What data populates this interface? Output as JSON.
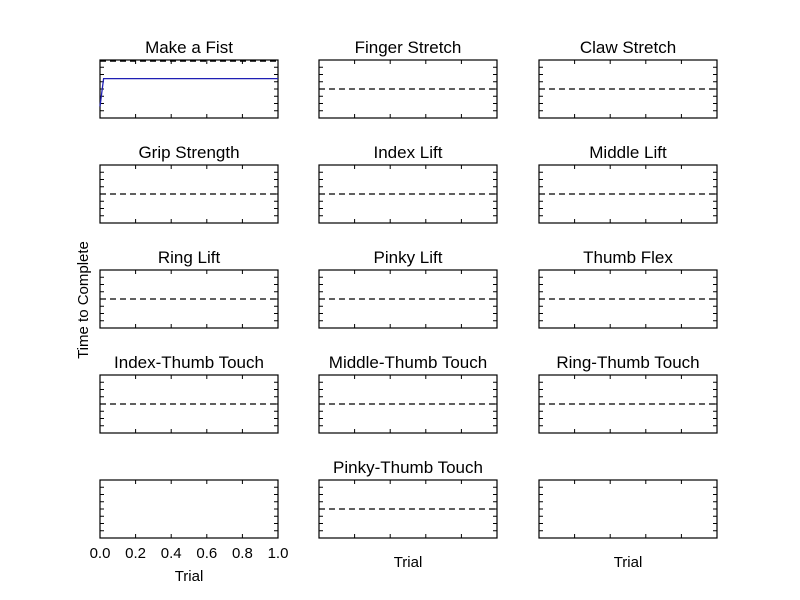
{
  "figure": {
    "ylabel": "Time to Complete",
    "colors": {
      "series": "#1f1fb4",
      "reference": "#000000",
      "axes": "#000000"
    }
  },
  "chart_data": [
    {
      "type": "line",
      "title": "Make a Fist",
      "xlabel": "",
      "ylabel": "",
      "xlim": [
        0,
        1
      ],
      "ylim": [
        0,
        1
      ],
      "series": [
        {
          "x": [
            0.0,
            0.02,
            1.0
          ],
          "y": [
            0.2,
            0.68,
            0.68
          ]
        }
      ],
      "reference_y": 0.98
    },
    {
      "type": "line",
      "title": "Finger Stretch",
      "xlabel": "",
      "ylabel": "",
      "xlim": [
        0,
        1
      ],
      "ylim": [
        0,
        1
      ],
      "series": [],
      "reference_y": 0.5
    },
    {
      "type": "line",
      "title": "Claw Stretch",
      "xlabel": "",
      "ylabel": "",
      "xlim": [
        0,
        1
      ],
      "ylim": [
        0,
        1
      ],
      "series": [],
      "reference_y": 0.5
    },
    {
      "type": "line",
      "title": "Grip Strength",
      "xlabel": "",
      "ylabel": "",
      "xlim": [
        0,
        1
      ],
      "ylim": [
        0,
        1
      ],
      "series": [],
      "reference_y": 0.5
    },
    {
      "type": "line",
      "title": "Index Lift",
      "xlabel": "",
      "ylabel": "",
      "xlim": [
        0,
        1
      ],
      "ylim": [
        0,
        1
      ],
      "series": [],
      "reference_y": 0.5
    },
    {
      "type": "line",
      "title": "Middle Lift",
      "xlabel": "",
      "ylabel": "",
      "xlim": [
        0,
        1
      ],
      "ylim": [
        0,
        1
      ],
      "series": [],
      "reference_y": 0.5
    },
    {
      "type": "line",
      "title": "Ring Lift",
      "xlabel": "",
      "ylabel": "",
      "xlim": [
        0,
        1
      ],
      "ylim": [
        0,
        1
      ],
      "series": [],
      "reference_y": 0.5
    },
    {
      "type": "line",
      "title": "Pinky Lift",
      "xlabel": "",
      "ylabel": "",
      "xlim": [
        0,
        1
      ],
      "ylim": [
        0,
        1
      ],
      "series": [],
      "reference_y": 0.5
    },
    {
      "type": "line",
      "title": "Thumb Flex",
      "xlabel": "",
      "ylabel": "",
      "xlim": [
        0,
        1
      ],
      "ylim": [
        0,
        1
      ],
      "series": [],
      "reference_y": 0.5
    },
    {
      "type": "line",
      "title": "Index-Thumb Touch",
      "xlabel": "",
      "ylabel": "",
      "xlim": [
        0,
        1
      ],
      "ylim": [
        0,
        1
      ],
      "series": [],
      "reference_y": 0.5
    },
    {
      "type": "line",
      "title": "Middle-Thumb Touch",
      "xlabel": "",
      "ylabel": "",
      "xlim": [
        0,
        1
      ],
      "ylim": [
        0,
        1
      ],
      "series": [],
      "reference_y": 0.5
    },
    {
      "type": "line",
      "title": "Ring-Thumb Touch",
      "xlabel": "",
      "ylabel": "",
      "xlim": [
        0,
        1
      ],
      "ylim": [
        0,
        1
      ],
      "series": [],
      "reference_y": 0.5
    },
    {
      "type": "line",
      "title": "",
      "xlabel": "Trial",
      "ylabel": "",
      "xlim": [
        0,
        1
      ],
      "ylim": [
        0,
        1
      ],
      "series": [],
      "reference_y": null,
      "xticks": [
        "0.0",
        "0.2",
        "0.4",
        "0.6",
        "0.8",
        "1.0"
      ]
    },
    {
      "type": "line",
      "title": "Pinky-Thumb Touch",
      "xlabel": "Trial",
      "ylabel": "",
      "xlim": [
        0,
        1
      ],
      "ylim": [
        0,
        1
      ],
      "series": [],
      "reference_y": 0.5
    },
    {
      "type": "line",
      "title": "",
      "xlabel": "Trial",
      "ylabel": "",
      "xlim": [
        0,
        1
      ],
      "ylim": [
        0,
        1
      ],
      "series": [],
      "reference_y": null
    }
  ]
}
